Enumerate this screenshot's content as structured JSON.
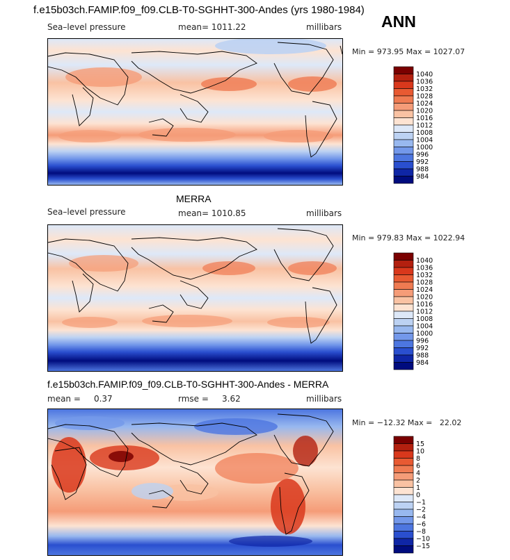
{
  "top_title": "f.e15b03ch.FAMIP.f09_f09.CLB-T0-SGHHT-300-Andes (yrs 1980-1984)",
  "season": "ANN",
  "panels": [
    {
      "title": "",
      "variable": "Sea–level pressure",
      "stats": "mean= 1011.22",
      "units": "millibars",
      "minmax": "Min = 973.95 Max = 1027.07",
      "levels": [
        "1040",
        "1036",
        "1032",
        "1028",
        "1024",
        "1020",
        "1016",
        "1012",
        "1008",
        "1004",
        "1000",
        "996",
        "992",
        "988",
        "984"
      ],
      "colors": [
        "#7a0000",
        "#b3200f",
        "#d9381c",
        "#e85a32",
        "#ef7b52",
        "#f59c78",
        "#f9c2a3",
        "#fde3d2",
        "#dde8f8",
        "#bcd2f3",
        "#98b8ef",
        "#7398ea",
        "#4d76e0",
        "#2a4fcf",
        "#0f26a6",
        "#000c7e"
      ]
    },
    {
      "title": "MERRA",
      "variable": "Sea–level pressure",
      "stats": "mean= 1010.85",
      "units": "millibars",
      "minmax": "Min = 979.83 Max = 1022.94",
      "levels": [
        "1040",
        "1036",
        "1032",
        "1028",
        "1024",
        "1020",
        "1016",
        "1012",
        "1008",
        "1004",
        "1000",
        "996",
        "992",
        "988",
        "984"
      ],
      "colors": [
        "#7a0000",
        "#b3200f",
        "#d9381c",
        "#e85a32",
        "#ef7b52",
        "#f59c78",
        "#f9c2a3",
        "#fde3d2",
        "#dde8f8",
        "#bcd2f3",
        "#98b8ef",
        "#7398ea",
        "#4d76e0",
        "#2a4fcf",
        "#0f26a6",
        "#000c7e"
      ]
    },
    {
      "title": "f.e15b03ch.FAMIP.f09_f09.CLB-T0-SGHHT-300-Andes - MERRA",
      "variable": "mean =     0.37",
      "stats": "rmse =     3.62",
      "units": "millibars",
      "minmax": "Min = −12.32 Max =   22.02",
      "levels": [
        "15",
        "10",
        "8",
        "6",
        "4",
        "2",
        "1",
        "0",
        "−1",
        "−2",
        "−4",
        "−6",
        "−8",
        "−10",
        "−15"
      ],
      "colors": [
        "#7a0000",
        "#b3200f",
        "#d9381c",
        "#e85a32",
        "#ef7b52",
        "#f59c78",
        "#f9c2a3",
        "#fde3d2",
        "#dde8f8",
        "#bcd2f3",
        "#98b8ef",
        "#7398ea",
        "#4d76e0",
        "#2a4fcf",
        "#0f26a6",
        "#000c7e"
      ]
    }
  ],
  "chart_data": [
    {
      "type": "heatmap",
      "title": "f.e15b03ch.FAMIP.f09_f09.CLB-T0-SGHHT-300-Andes (yrs 1980-1984)",
      "subtitle": "Sea–level pressure",
      "units": "millibars",
      "mean": 1011.22,
      "min": 973.95,
      "max": 1027.07,
      "contour_levels": [
        984,
        988,
        992,
        996,
        1000,
        1004,
        1008,
        1012,
        1016,
        1020,
        1024,
        1028,
        1032,
        1036,
        1040
      ]
    },
    {
      "type": "heatmap",
      "title": "MERRA",
      "subtitle": "Sea–level pressure",
      "units": "millibars",
      "mean": 1010.85,
      "min": 979.83,
      "max": 1022.94,
      "contour_levels": [
        984,
        988,
        992,
        996,
        1000,
        1004,
        1008,
        1012,
        1016,
        1020,
        1024,
        1028,
        1032,
        1036,
        1040
      ]
    },
    {
      "type": "heatmap",
      "title": "f.e15b03ch.FAMIP.f09_f09.CLB-T0-SGHHT-300-Andes - MERRA",
      "units": "millibars",
      "mean": 0.37,
      "rmse": 3.62,
      "min": -12.32,
      "max": 22.02,
      "contour_levels": [
        -15,
        -10,
        -8,
        -6,
        -4,
        -2,
        -1,
        0,
        1,
        2,
        4,
        6,
        8,
        10,
        15
      ]
    }
  ]
}
